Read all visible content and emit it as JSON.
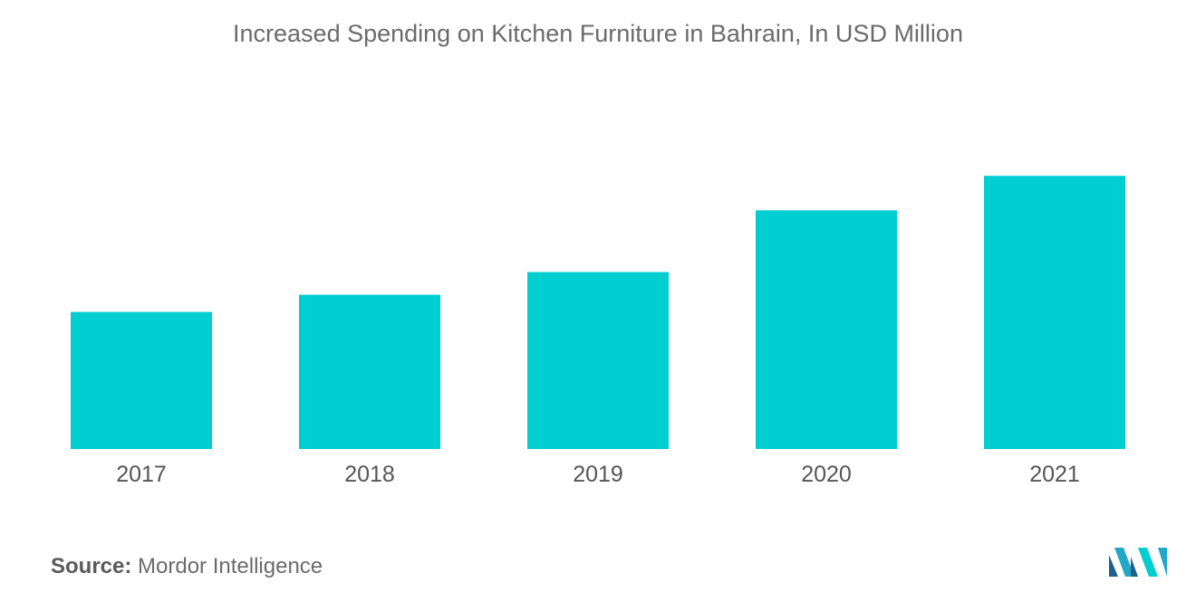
{
  "chart_data": {
    "type": "bar",
    "title": "Increased Spending on Kitchen Furniture in Bahrain, In USD Million",
    "categories": [
      "2017",
      "2018",
      "2019",
      "2020",
      "2021"
    ],
    "values": [
      151,
      170,
      195,
      263,
      301
    ],
    "xlabel": "",
    "ylabel": "",
    "ylim": [
      0,
      400
    ],
    "grid": false,
    "legend": "none",
    "bar_color": "#00ced1"
  },
  "footer": {
    "source_label": "Source:",
    "source_value": "Mordor Intelligence"
  },
  "logo": {
    "icon": "mordor-intelligence-logo-icon",
    "colors": [
      "#1e5f8c",
      "#23a7c8",
      "#00ced1"
    ]
  }
}
